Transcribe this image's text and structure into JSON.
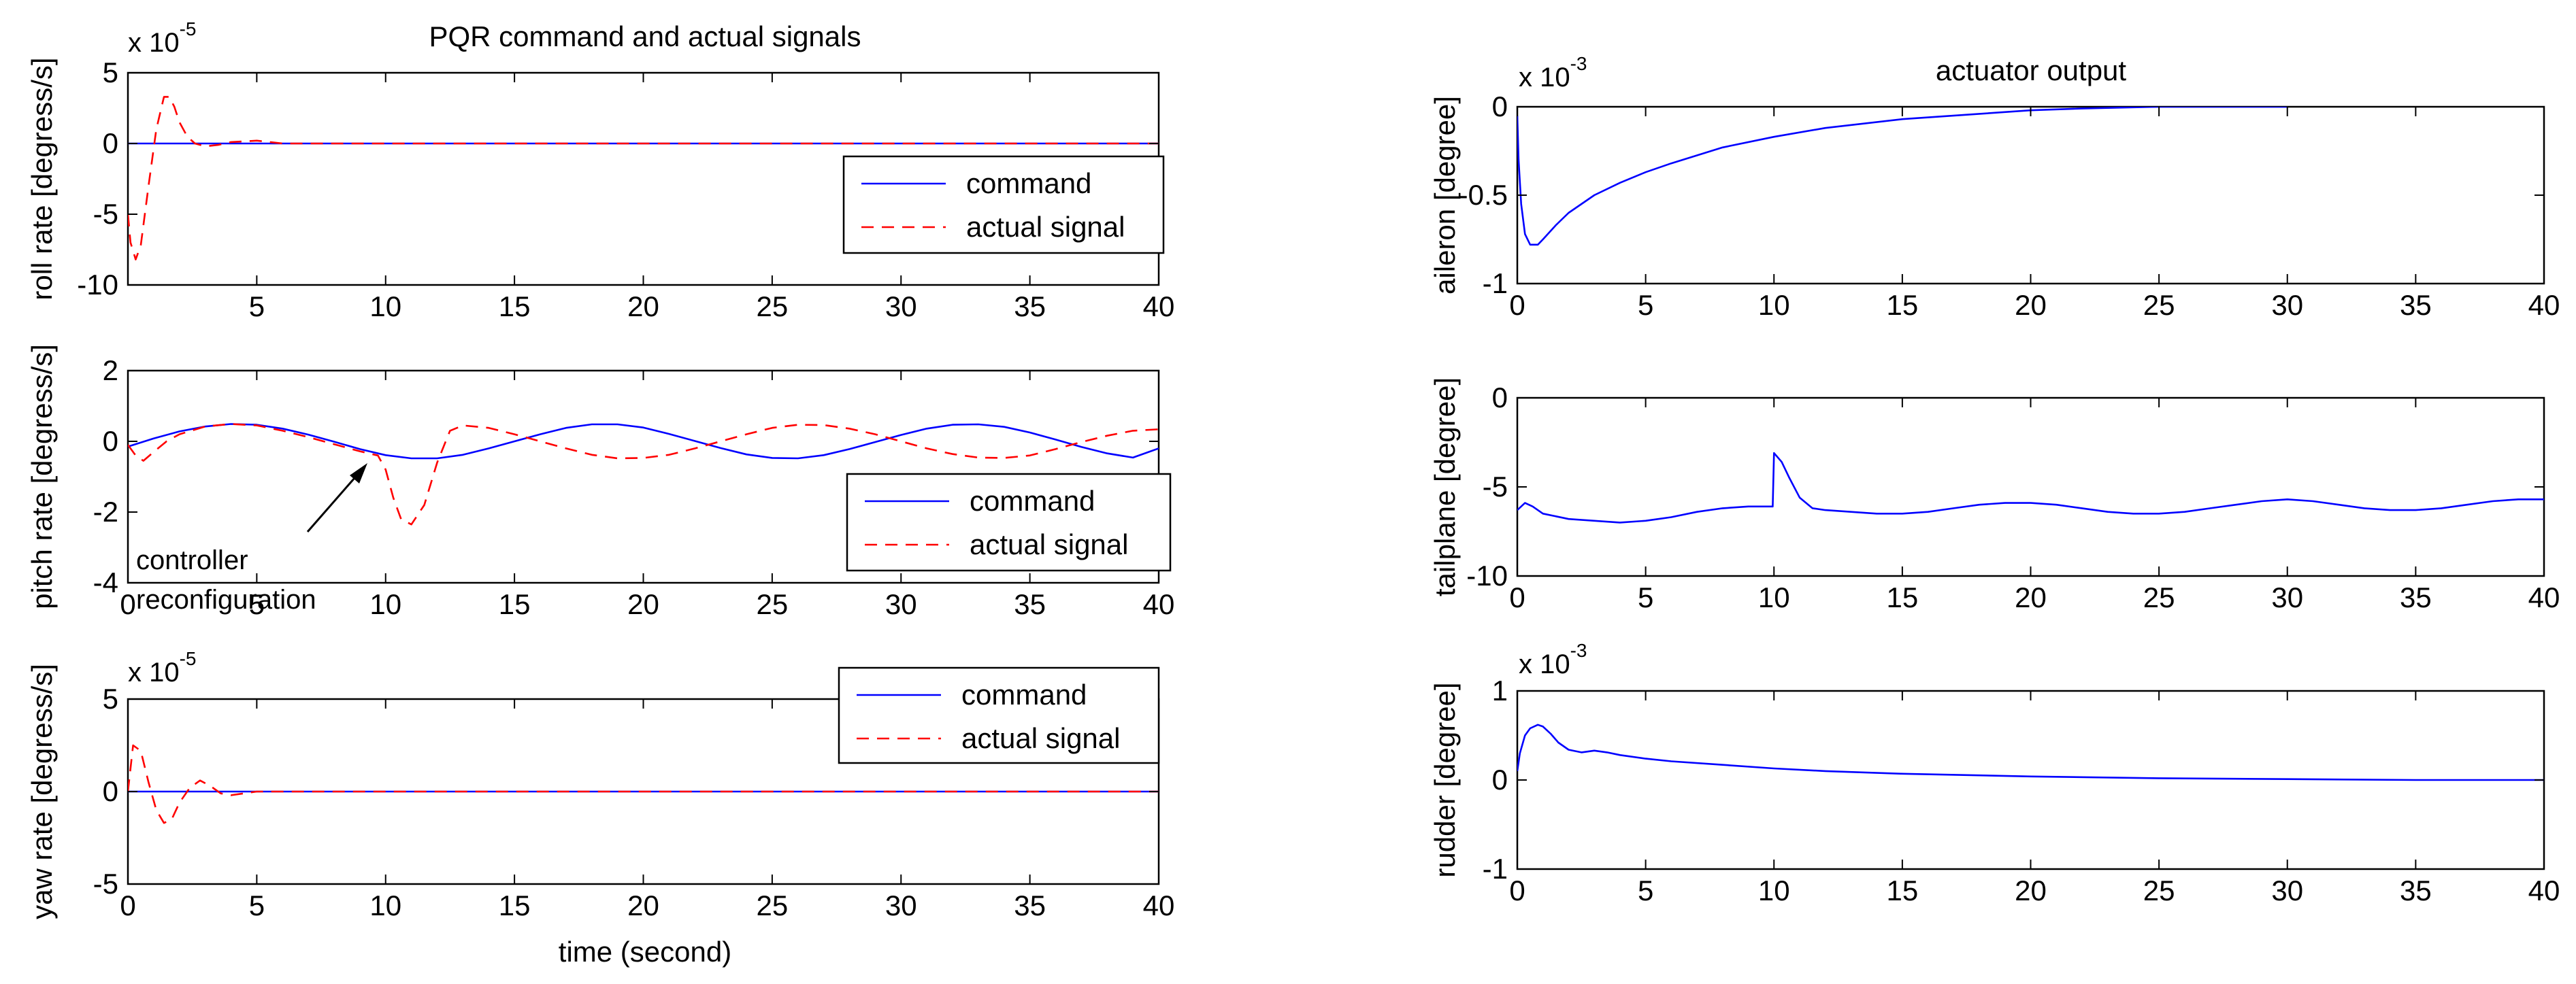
{
  "figure": {
    "left_title": "PQR command and actual signals",
    "right_title": "actuator output",
    "left_xlabel": "time (second)",
    "annotation": {
      "line1": "controller",
      "line2": "reconfiguration"
    },
    "colors": {
      "command": "#0000ff",
      "actual": "#ff0000",
      "axis": "#000000"
    }
  },
  "chart_data": [
    {
      "type": "line",
      "panel": "roll",
      "title": "PQR command and actual signals",
      "ylabel": "roll rate [degress/s]",
      "xlabel": "",
      "exponent": {
        "base": "x 10",
        "power": "-5"
      },
      "xlim": [
        0,
        40
      ],
      "ylim": [
        -10,
        5
      ],
      "xticks": [
        0,
        5,
        10,
        15,
        20,
        25,
        30,
        35,
        40
      ],
      "xticklabels": [
        "",
        "5",
        "10",
        "15",
        "20",
        "25",
        "30",
        "35",
        "40"
      ],
      "yticks": [
        5,
        0,
        -5,
        -10
      ],
      "yticklabels": [
        "5",
        "0",
        "-5",
        "-10"
      ],
      "legend": {
        "position": "right",
        "entries": [
          "command",
          "actual signal"
        ]
      },
      "series": [
        {
          "name": "command",
          "style": "solid",
          "color": "#0000ff",
          "x": [
            0,
            40
          ],
          "y": [
            0,
            0
          ]
        },
        {
          "name": "actual signal",
          "style": "dashed",
          "color": "#ff0000",
          "x": [
            0,
            0.1,
            0.3,
            0.5,
            0.8,
            1.1,
            1.4,
            1.6,
            1.8,
            2.0,
            2.3,
            2.6,
            3.0,
            3.5,
            4.0,
            4.5,
            5.0,
            5.5,
            6.0,
            8.0,
            40
          ],
          "y": [
            -5.0,
            -7.0,
            -8.2,
            -7.2,
            -3.0,
            1.0,
            3.3,
            3.3,
            2.6,
            1.5,
            0.5,
            0.0,
            -0.2,
            -0.1,
            0.1,
            0.15,
            0.2,
            0.1,
            0.0,
            0.0,
            0.0
          ]
        }
      ]
    },
    {
      "type": "line",
      "panel": "pitch",
      "ylabel": "pitch rate [degress/s]",
      "xlabel": "",
      "xlim": [
        0,
        40
      ],
      "ylim": [
        -4,
        2
      ],
      "xticks": [
        0,
        5,
        10,
        15,
        20,
        25,
        30,
        35,
        40
      ],
      "xticklabels": [
        "0",
        "5",
        "10",
        "15",
        "20",
        "25",
        "30",
        "35",
        "40"
      ],
      "yticks": [
        2,
        0,
        -2,
        -4
      ],
      "yticklabels": [
        "2",
        "0",
        "-2",
        "-4"
      ],
      "legend": {
        "position": "right",
        "entries": [
          "command",
          "actual signal"
        ]
      },
      "series": [
        {
          "name": "command",
          "style": "solid",
          "color": "#0000ff",
          "x": [
            0,
            1,
            2,
            3,
            4,
            5,
            6,
            7,
            8,
            9,
            10,
            11,
            12,
            13,
            14,
            15,
            16,
            17,
            18,
            19,
            20,
            21,
            22,
            23,
            24,
            25,
            26,
            27,
            28,
            29,
            30,
            31,
            32,
            33,
            34,
            35,
            36,
            37,
            38,
            39,
            40
          ],
          "y": [
            -0.15,
            0.08,
            0.28,
            0.42,
            0.49,
            0.47,
            0.36,
            0.19,
            -0.01,
            -0.22,
            -0.39,
            -0.48,
            -0.48,
            -0.38,
            -0.2,
            0.0,
            0.2,
            0.38,
            0.48,
            0.48,
            0.39,
            0.21,
            0.01,
            -0.19,
            -0.37,
            -0.47,
            -0.48,
            -0.39,
            -0.22,
            -0.02,
            0.18,
            0.36,
            0.47,
            0.48,
            0.41,
            0.25,
            0.05,
            -0.16,
            -0.34,
            -0.46,
            -0.2
          ]
        },
        {
          "name": "actual signal",
          "style": "dashed",
          "color": "#ff0000",
          "x": [
            0,
            0.3,
            0.6,
            1.0,
            1.5,
            2,
            3,
            4,
            5,
            6,
            7,
            8,
            9,
            9.7,
            10.0,
            10.3,
            10.6,
            11.0,
            11.5,
            12.0,
            12.5,
            13,
            14,
            15,
            16,
            17,
            18,
            19,
            20,
            21,
            22,
            23,
            24,
            25,
            26,
            27,
            28,
            29,
            30,
            31,
            32,
            33,
            34,
            35,
            36,
            37,
            38,
            39,
            40
          ],
          "y": [
            -0.1,
            -0.4,
            -0.55,
            -0.3,
            0.0,
            0.2,
            0.42,
            0.49,
            0.45,
            0.3,
            0.12,
            -0.08,
            -0.28,
            -0.4,
            -0.8,
            -1.6,
            -2.2,
            -2.35,
            -1.8,
            -0.6,
            0.3,
            0.45,
            0.38,
            0.2,
            0.0,
            -0.2,
            -0.38,
            -0.48,
            -0.47,
            -0.38,
            -0.2,
            0.0,
            0.2,
            0.38,
            0.47,
            0.46,
            0.36,
            0.2,
            0.0,
            -0.2,
            -0.36,
            -0.46,
            -0.47,
            -0.4,
            -0.22,
            -0.02,
            0.16,
            0.3,
            0.34
          ]
        }
      ]
    },
    {
      "type": "line",
      "panel": "yaw",
      "ylabel": "yaw rate [degress/s]",
      "xlabel": "time (second)",
      "exponent": {
        "base": "x 10",
        "power": "-5"
      },
      "xlim": [
        0,
        40
      ],
      "ylim": [
        -5,
        5
      ],
      "xticks": [
        0,
        5,
        10,
        15,
        20,
        25,
        30,
        35,
        40
      ],
      "xticklabels": [
        "0",
        "5",
        "10",
        "15",
        "20",
        "25",
        "30",
        "35",
        "40"
      ],
      "yticks": [
        5,
        0,
        -5
      ],
      "yticklabels": [
        "5",
        "0",
        "-5"
      ],
      "legend": {
        "position": "top-right",
        "entries": [
          "command",
          "actual signal"
        ]
      },
      "series": [
        {
          "name": "command",
          "style": "solid",
          "color": "#0000ff",
          "x": [
            0,
            40
          ],
          "y": [
            0,
            0
          ]
        },
        {
          "name": "actual signal",
          "style": "dashed",
          "color": "#ff0000",
          "x": [
            0,
            0.2,
            0.5,
            0.8,
            1.1,
            1.4,
            1.7,
            2.0,
            2.4,
            2.8,
            3.2,
            3.6,
            4.0,
            4.5,
            5.0,
            40
          ],
          "y": [
            0,
            2.5,
            2.2,
            0.5,
            -1.0,
            -1.7,
            -1.5,
            -0.6,
            0.2,
            0.6,
            0.3,
            -0.1,
            -0.2,
            -0.1,
            0.0,
            0.0
          ]
        }
      ]
    },
    {
      "type": "line",
      "panel": "aileron",
      "title": "actuator output",
      "ylabel": "aileron [degree]",
      "xlabel": "",
      "exponent": {
        "base": "x 10",
        "power": "-3"
      },
      "xlim": [
        0,
        40
      ],
      "ylim": [
        -1,
        0
      ],
      "xticks": [
        0,
        5,
        10,
        15,
        20,
        25,
        30,
        35,
        40
      ],
      "xticklabels": [
        "0",
        "5",
        "10",
        "15",
        "20",
        "25",
        "30",
        "35",
        "40"
      ],
      "yticks": [
        0,
        -0.5,
        -1
      ],
      "yticklabels": [
        "0",
        "-0.5",
        "-1"
      ],
      "series": [
        {
          "name": "aileron",
          "style": "solid",
          "color": "#0000ff",
          "x": [
            0,
            0.05,
            0.15,
            0.3,
            0.5,
            0.8,
            1.0,
            1.5,
            2,
            3,
            4,
            5,
            6,
            8,
            10,
            12,
            15,
            18,
            20,
            22,
            25,
            28,
            30
          ],
          "y": [
            -0.05,
            -0.3,
            -0.55,
            -0.72,
            -0.78,
            -0.78,
            -0.75,
            -0.67,
            -0.6,
            -0.5,
            -0.43,
            -0.37,
            -0.32,
            -0.23,
            -0.17,
            -0.12,
            -0.07,
            -0.04,
            -0.02,
            -0.01,
            0.0,
            0.0,
            0.0
          ]
        }
      ]
    },
    {
      "type": "line",
      "panel": "tailplane",
      "ylabel": "tailplane [degree]",
      "xlabel": "",
      "xlim": [
        0,
        40
      ],
      "ylim": [
        -10,
        0
      ],
      "xticks": [
        0,
        5,
        10,
        15,
        20,
        25,
        30,
        35,
        40
      ],
      "xticklabels": [
        "0",
        "5",
        "10",
        "15",
        "20",
        "25",
        "30",
        "35",
        "40"
      ],
      "yticks": [
        0,
        -5,
        -10
      ],
      "yticklabels": [
        "0",
        "-5",
        "-10"
      ],
      "series": [
        {
          "name": "tailplane",
          "style": "solid",
          "color": "#0000ff",
          "x": [
            0,
            0.3,
            0.6,
            1,
            2,
            3,
            4,
            5,
            6,
            7,
            8,
            9,
            9.95,
            10.0,
            10.3,
            10.6,
            11.0,
            11.5,
            12,
            13,
            14,
            15,
            16,
            17,
            18,
            19,
            20,
            21,
            22,
            23,
            24,
            25,
            26,
            27,
            28,
            29,
            30,
            31,
            32,
            33,
            34,
            35,
            36,
            37,
            38,
            39,
            40
          ],
          "y": [
            -6.3,
            -5.9,
            -6.1,
            -6.5,
            -6.8,
            -6.9,
            -7.0,
            -6.9,
            -6.7,
            -6.4,
            -6.2,
            -6.1,
            -6.1,
            -3.1,
            -3.6,
            -4.5,
            -5.6,
            -6.2,
            -6.3,
            -6.4,
            -6.5,
            -6.5,
            -6.4,
            -6.2,
            -6.0,
            -5.9,
            -5.9,
            -6.0,
            -6.2,
            -6.4,
            -6.5,
            -6.5,
            -6.4,
            -6.2,
            -6.0,
            -5.8,
            -5.7,
            -5.8,
            -6.0,
            -6.2,
            -6.3,
            -6.3,
            -6.2,
            -6.0,
            -5.8,
            -5.7,
            -5.7
          ]
        }
      ]
    },
    {
      "type": "line",
      "panel": "rudder",
      "ylabel": "rudder [degree]",
      "xlabel": "",
      "exponent": {
        "base": "x 10",
        "power": "-3"
      },
      "xlim": [
        0,
        40
      ],
      "ylim": [
        -1,
        1
      ],
      "xticks": [
        0,
        5,
        10,
        15,
        20,
        25,
        30,
        35,
        40
      ],
      "xticklabels": [
        "0",
        "5",
        "10",
        "15",
        "20",
        "25",
        "30",
        "35",
        "40"
      ],
      "yticks": [
        1,
        0,
        -1
      ],
      "yticklabels": [
        "1",
        "0",
        "-1"
      ],
      "series": [
        {
          "name": "rudder",
          "style": "solid",
          "color": "#0000ff",
          "x": [
            0,
            0.1,
            0.3,
            0.5,
            0.8,
            1.0,
            1.3,
            1.6,
            2.0,
            2.5,
            3.0,
            3.5,
            4,
            5,
            6,
            8,
            10,
            12,
            15,
            20,
            25,
            30,
            35,
            40
          ],
          "y": [
            0.1,
            0.3,
            0.5,
            0.58,
            0.62,
            0.6,
            0.52,
            0.42,
            0.34,
            0.31,
            0.33,
            0.31,
            0.28,
            0.24,
            0.21,
            0.17,
            0.13,
            0.1,
            0.07,
            0.04,
            0.02,
            0.01,
            0.0,
            0.0
          ]
        }
      ]
    }
  ]
}
